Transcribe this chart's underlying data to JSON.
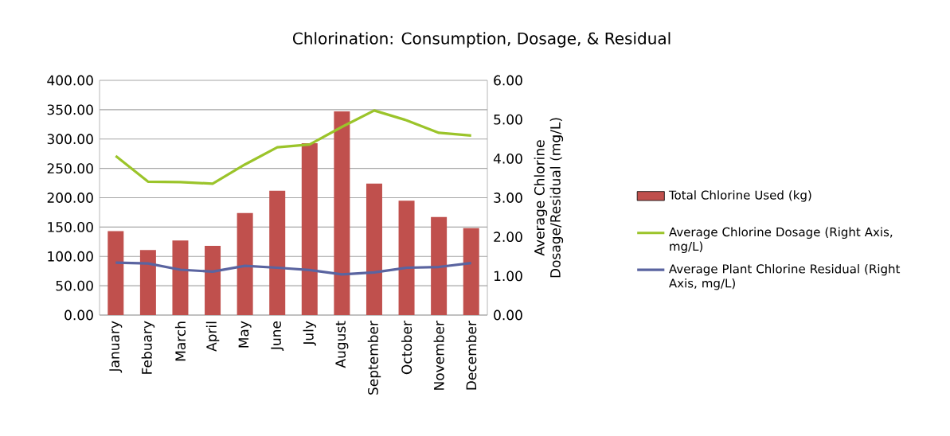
{
  "chart_data": {
    "type": "bar",
    "title": "Chlorination: Consumption, Dosage, & Residual",
    "y2label": "Average Chlorine Dosage/Residual (mg/L)",
    "categories": [
      "January",
      "Febuary",
      "March",
      "April",
      "May",
      "June",
      "July",
      "August",
      "September",
      "October",
      "November",
      "December"
    ],
    "series": [
      {
        "name": "Total Chlorine Used (kg)",
        "color": "#c0504d",
        "values": [
          143,
          111,
          127,
          118,
          174,
          212,
          293,
          347,
          224,
          195,
          167,
          148
        ]
      },
      {
        "name": "Average Chlorine Dosage (Right Axis, mg/L)",
        "type": "line",
        "axis": "y2",
        "color": "#9bc42a",
        "values": [
          4.07,
          3.41,
          3.4,
          3.36,
          3.85,
          4.29,
          4.36,
          4.81,
          5.23,
          4.98,
          4.66,
          4.59
        ]
      },
      {
        "name": "Average Plant Chlorine Residual (Right Axis, mg/L)",
        "type": "line",
        "axis": "y2",
        "color": "#5a64a0",
        "values": [
          1.34,
          1.32,
          1.16,
          1.11,
          1.26,
          1.21,
          1.15,
          1.04,
          1.09,
          1.21,
          1.23,
          1.33
        ]
      }
    ],
    "ylim": [
      0,
      400
    ],
    "yticks": [
      {
        "value": 0,
        "label": "0.00"
      },
      {
        "value": 50,
        "label": "50.00"
      },
      {
        "value": 100,
        "label": "100.00"
      },
      {
        "value": 150,
        "label": "150.00"
      },
      {
        "value": 200,
        "label": "200.00"
      },
      {
        "value": 250,
        "label": "250.00"
      },
      {
        "value": 300,
        "label": "300.00"
      },
      {
        "value": 350,
        "label": "350.00"
      },
      {
        "value": 400,
        "label": "400.00"
      }
    ],
    "y2lim": [
      0,
      6
    ],
    "y2ticks": [
      {
        "value": 0,
        "label": "0.00"
      },
      {
        "value": 1,
        "label": "1.00"
      },
      {
        "value": 2,
        "label": "2.00"
      },
      {
        "value": 3,
        "label": "3.00"
      },
      {
        "value": 4,
        "label": "4.00"
      },
      {
        "value": 5,
        "label": "5.00"
      },
      {
        "value": 6,
        "label": "6.00"
      }
    ],
    "grid": "y",
    "legend": "right",
    "marker": "none"
  }
}
